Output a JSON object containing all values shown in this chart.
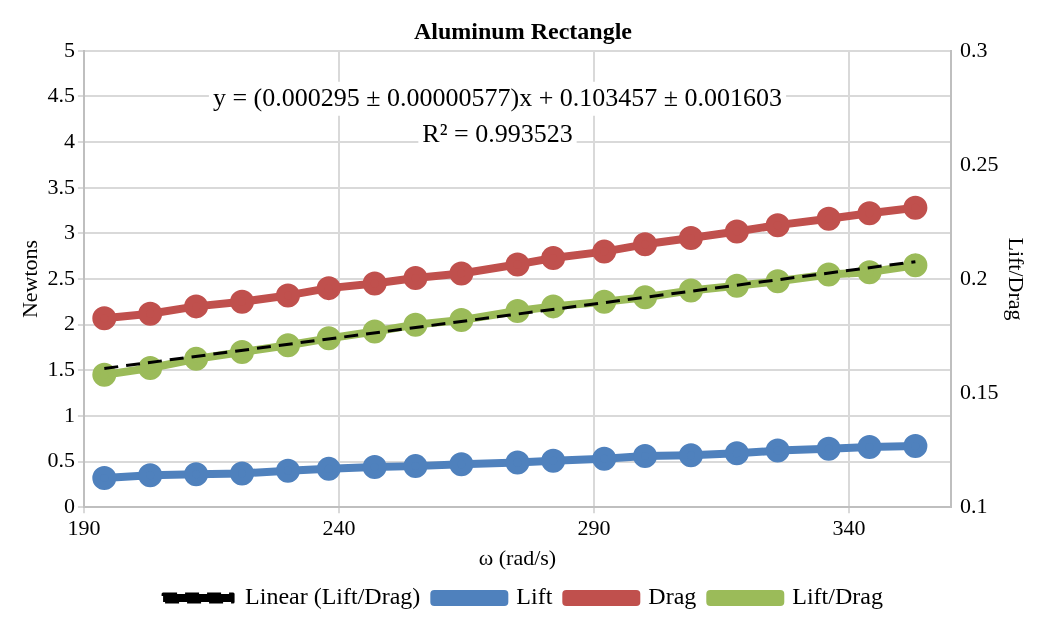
{
  "chart_data": {
    "type": "line",
    "title": "Aluminum Rectangle",
    "xlabel": "ω (rad/s)",
    "ylabel": "Newtons",
    "y2label": "Lift/Drag",
    "x": [
      194,
      203,
      212,
      221,
      230,
      238,
      247,
      255,
      264,
      275,
      282,
      292,
      300,
      309,
      318,
      326,
      336,
      344,
      353
    ],
    "series": [
      {
        "name": "Lift",
        "color": "#4f81bd",
        "values": [
          0.32,
          0.35,
          0.36,
          0.37,
          0.4,
          0.42,
          0.44,
          0.45,
          0.47,
          0.49,
          0.51,
          0.53,
          0.56,
          0.57,
          0.59,
          0.62,
          0.64,
          0.66,
          0.67
        ]
      },
      {
        "name": "Drag",
        "color": "#c0504d",
        "values": [
          2.07,
          2.12,
          2.2,
          2.25,
          2.32,
          2.4,
          2.45,
          2.51,
          2.56,
          2.66,
          2.73,
          2.8,
          2.88,
          2.95,
          3.02,
          3.09,
          3.16,
          3.22,
          3.28
        ]
      },
      {
        "name": "Lift/Drag",
        "color": "#9bbb59",
        "axis": "y2",
        "values": [
          0.158,
          0.161,
          0.165,
          0.168,
          0.171,
          0.174,
          0.177,
          0.18,
          0.182,
          0.186,
          0.188,
          0.19,
          0.192,
          0.195,
          0.197,
          0.199,
          0.202,
          0.203,
          0.206
        ]
      },
      {
        "name": "Linear (Lift/Drag)",
        "color": "#000000",
        "axis": "y2",
        "type": "line",
        "marker": "none",
        "line_style": "dashed",
        "x": [
          194,
          353
        ],
        "values": [
          0.1608,
          0.2076
        ]
      }
    ],
    "xlim": [
      190,
      360
    ],
    "xticks": [
      190,
      240,
      290,
      340
    ],
    "ylim": [
      0,
      5
    ],
    "yticks": [
      0,
      0.5,
      1,
      1.5,
      2,
      2.5,
      3,
      3.5,
      4,
      4.5,
      5
    ],
    "y2lim": [
      0.1,
      0.3
    ],
    "y2ticks": [
      0.1,
      0.15,
      0.2,
      0.25,
      0.3
    ],
    "annotations": [
      "y = (0.000295 ± 0.00000577)x + 0.103457 ± 0.001603",
      "R² = 0.993523"
    ],
    "grid": true,
    "legend": "bottom",
    "marker": "circle",
    "line_style": "solid"
  }
}
